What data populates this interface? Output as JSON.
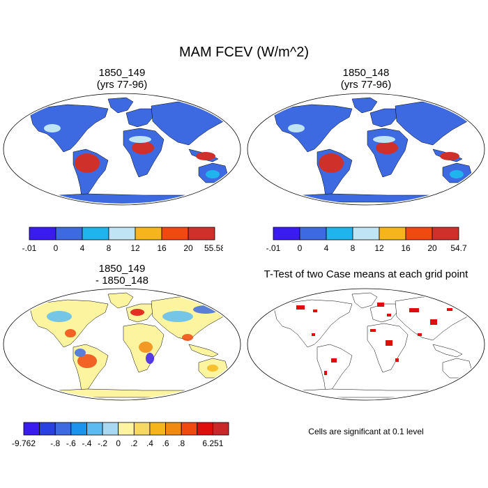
{
  "figure": {
    "title": "MAM FCEV (W/m^2)"
  },
  "panels": [
    {
      "id": "case1",
      "title": "1850_149",
      "subtitle": "(yrs 77-96)"
    },
    {
      "id": "case2",
      "title": "1850_148",
      "subtitle": "(yrs 77-96)"
    },
    {
      "id": "diff",
      "title": "1850_149",
      "subtitle": "- 1850_148"
    },
    {
      "id": "ttest",
      "title": "T-Test of two Case means at each grid point"
    }
  ],
  "colorbars": {
    "case1": {
      "colors": [
        "#3a1cf0",
        "#3d6ae0",
        "#1fb4ee",
        "#bfe4f4",
        "#f6b61b",
        "#f04a10",
        "#d0302a"
      ],
      "labels": [
        "-.01",
        "0",
        "4",
        "8",
        "12",
        "16",
        "20",
        "55.58"
      ]
    },
    "case2": {
      "colors": [
        "#3a1cf0",
        "#3d6ae0",
        "#1fb4ee",
        "#bfe4f4",
        "#f6b61b",
        "#f04a10",
        "#d0302a"
      ],
      "labels": [
        "-.01",
        "0",
        "4",
        "8",
        "12",
        "16",
        "20",
        "54.7"
      ]
    },
    "diff": {
      "colors": [
        "#3a1cf0",
        "#2a40e0",
        "#3d6ae0",
        "#1c94ee",
        "#5cbcf2",
        "#a8d8f2",
        "#fdf4a0",
        "#f6d862",
        "#f6b61b",
        "#f08a10",
        "#f04a10",
        "#e00d0d",
        "#c8282a"
      ],
      "labels": [
        "-9.762",
        "",
        "-.8",
        "-.6",
        "-.4",
        "-.2",
        "0",
        ".2",
        ".4",
        ".6",
        ".8",
        "",
        "6.251"
      ]
    }
  },
  "ttest_note": "Cells are significant at 0.1 level",
  "map_fills": {
    "ocean": "#ffffff",
    "case_land": "#3d6ae0",
    "diff_land": "#fdf4a0",
    "ttest_land": "#ffffff",
    "ttest_sig": "#e00d0d"
  }
}
